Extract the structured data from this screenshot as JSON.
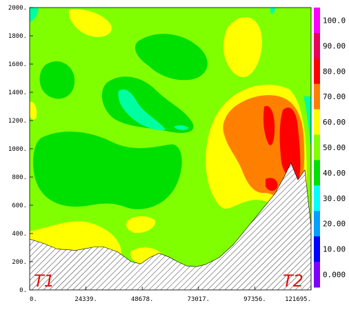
{
  "chart_data": {
    "type": "contour",
    "title": "",
    "xlabel": "",
    "ylabel": "",
    "xlim": [
      0,
      121695
    ],
    "ylim": [
      0,
      2000
    ],
    "x_ticks": [
      "0.",
      "24339.",
      "48678.",
      "73017.",
      "97356.",
      "121695."
    ],
    "y_ticks": [
      "0.",
      "200.",
      "400.",
      "600.",
      "800.",
      "1000.",
      "1200.",
      "1400.",
      "1600.",
      "1800.",
      "2000."
    ],
    "colorbar": {
      "labels": [
        "100.0",
        "90.00",
        "80.00",
        "70.00",
        "60.00",
        "50.00",
        "40.00",
        "30.00",
        "20.00",
        "10.00",
        "0.000"
      ],
      "levels": [
        100,
        90,
        80,
        70,
        60,
        50,
        40,
        30,
        20,
        10,
        0
      ],
      "colors": [
        "#ff00ff",
        "#e8005a",
        "#ff0000",
        "#ff8000",
        "#ffff00",
        "#80ff00",
        "#00e000",
        "#00ffff",
        "#00a0ff",
        "#0000ff",
        "#8000ff"
      ]
    },
    "annotations": {
      "left": "T1",
      "right": "T2"
    },
    "terrain_profile": [
      [
        0,
        360
      ],
      [
        6000,
        330
      ],
      [
        12000,
        290
      ],
      [
        20000,
        280
      ],
      [
        28000,
        305
      ],
      [
        32000,
        305
      ],
      [
        38000,
        270
      ],
      [
        44000,
        200
      ],
      [
        48000,
        185
      ],
      [
        52000,
        230
      ],
      [
        56000,
        260
      ],
      [
        60000,
        235
      ],
      [
        64000,
        200
      ],
      [
        68000,
        170
      ],
      [
        72000,
        165
      ],
      [
        76000,
        180
      ],
      [
        82000,
        230
      ],
      [
        88000,
        320
      ],
      [
        94000,
        440
      ],
      [
        100000,
        560
      ],
      [
        106000,
        680
      ],
      [
        110000,
        800
      ],
      [
        113000,
        900
      ],
      [
        116000,
        780
      ],
      [
        119000,
        850
      ],
      [
        121695,
        450
      ]
    ]
  }
}
